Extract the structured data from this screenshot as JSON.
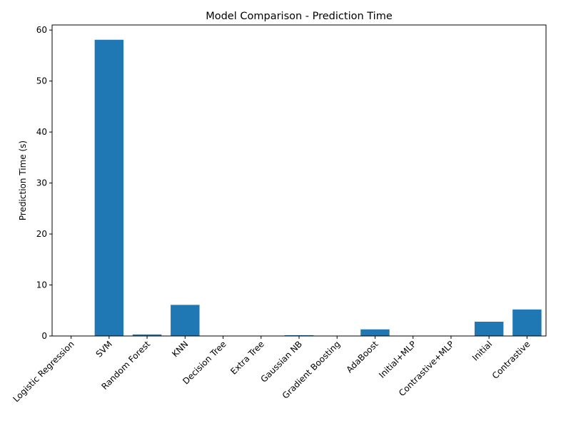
{
  "chart_data": {
    "type": "bar",
    "title": "Model Comparison - Prediction Time",
    "xlabel": "",
    "ylabel": "Prediction Time (s)",
    "categories": [
      "Logistic Regression",
      "SVM",
      "Random Forest",
      "KNN",
      "Decision Tree",
      "Extra Tree",
      "Gaussian NB",
      "Gradient Boosting",
      "AdaBoost",
      "Initial+MLP",
      "Contrastive+MLP",
      "Initial",
      "Contrastive"
    ],
    "values": [
      0.01,
      58.1,
      0.3,
      6.1,
      0.01,
      0.01,
      0.15,
      0.02,
      1.3,
      0.01,
      0.01,
      2.8,
      5.2
    ],
    "ylim": [
      0,
      61
    ],
    "yticks": [
      0,
      10,
      20,
      30,
      40,
      50,
      60
    ],
    "bar_color": "#1f77b4",
    "grid": false,
    "legend": "none"
  }
}
